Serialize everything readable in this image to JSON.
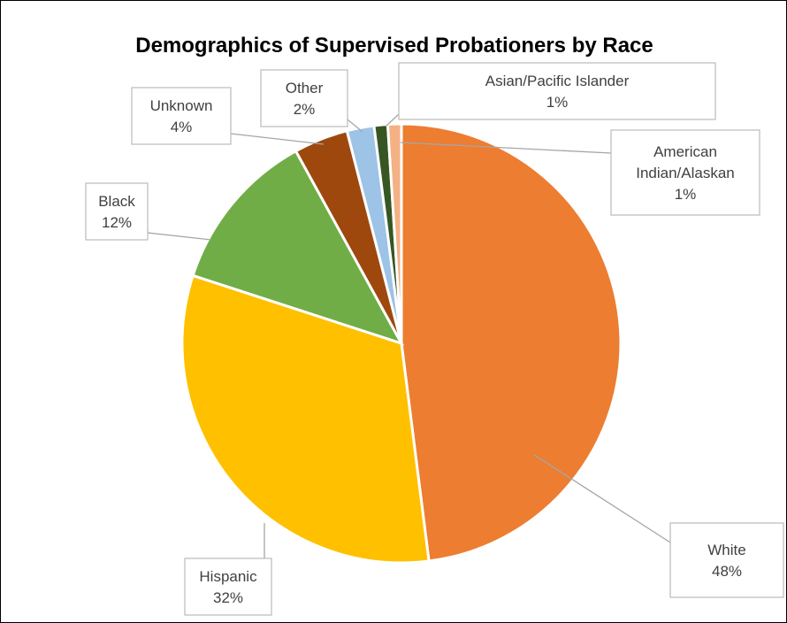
{
  "chart_data": {
    "type": "pie",
    "title": "Demographics of Supervised Probationers by Race",
    "slices": [
      {
        "label": "White",
        "value": 48,
        "value_label": "48%",
        "color": "#ED7D31"
      },
      {
        "label": "Hispanic",
        "value": 32,
        "value_label": "32%",
        "color": "#FFC000"
      },
      {
        "label": "Black",
        "value": 12,
        "value_label": "12%",
        "color": "#70AD47"
      },
      {
        "label": "Unknown",
        "value": 4,
        "value_label": "4%",
        "color": "#9E480E"
      },
      {
        "label": "Other",
        "value": 2,
        "value_label": "2%",
        "color": "#9DC3E6"
      },
      {
        "label": "Asian/Pacific Islander",
        "value": 1,
        "value_label": "1%",
        "color": "#375623"
      },
      {
        "label": "American Indian/Alaskan",
        "value": 1,
        "value_label": "1%",
        "color": "#F4B183"
      }
    ],
    "data_labels": "outside with leader lines",
    "legend": "none"
  }
}
